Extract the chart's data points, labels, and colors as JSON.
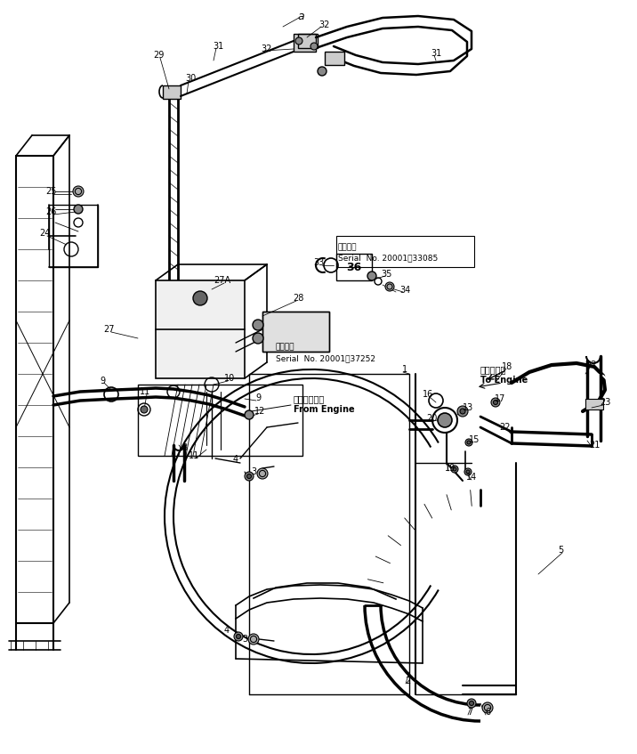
{
  "bg_color": "#ffffff",
  "line_color": "#000000",
  "figsize": [
    7.16,
    8.47
  ],
  "dpi": 100,
  "title_text": "",
  "serial1_line1": "適用号機",
  "serial1_line2": "Serial  No. 20001～33085",
  "serial2_line1": "適用号機",
  "serial2_line2": "Serial  No. 20001～37252",
  "from_engine_ja": "エンジンから",
  "from_engine_en": "From Engine",
  "to_engine_ja": "エンジンへ",
  "to_engine_en": "To Engine"
}
